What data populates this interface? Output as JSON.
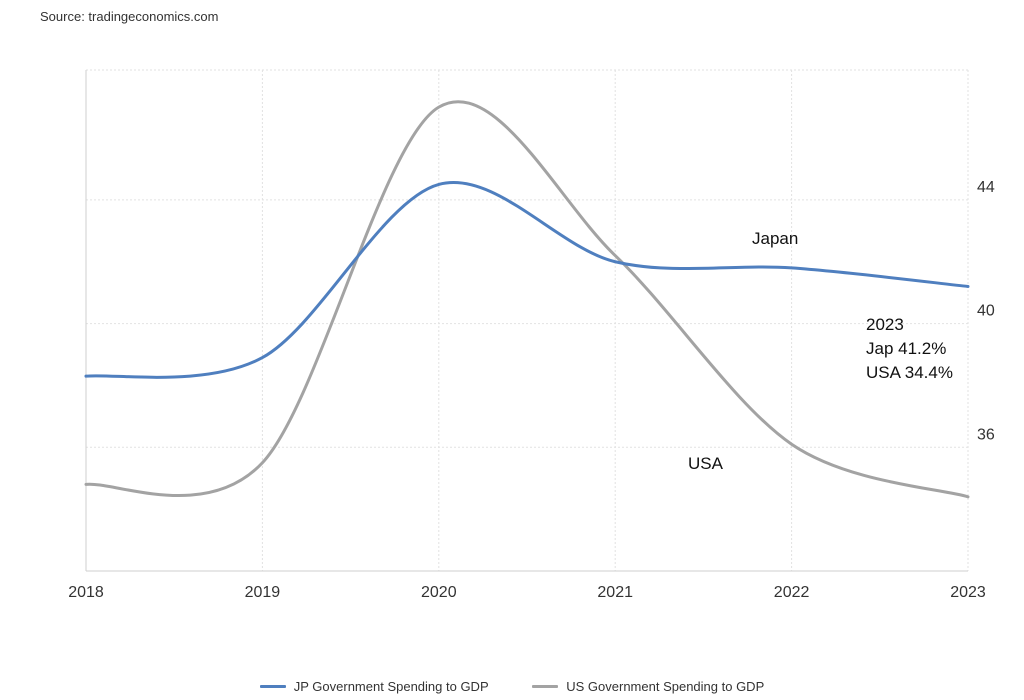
{
  "source": "Source: tradingeconomics.com",
  "chart_data": {
    "type": "line",
    "x": [
      2018,
      2019,
      2020,
      2021,
      2022,
      2023
    ],
    "x_tick_labels": [
      "2018",
      "2019",
      "2020",
      "2021",
      "2022",
      "2023"
    ],
    "y_tick_labels": [
      "36",
      "40",
      "44"
    ],
    "y_ticks": [
      36,
      40,
      44
    ],
    "xlim": [
      2018,
      2023
    ],
    "ylim": [
      32,
      48.2
    ],
    "y_axis_side": "right",
    "grid": true,
    "legend_placement": "bottom",
    "series": [
      {
        "name": "JP Government Spending to GDP",
        "color": "#4f7fbf",
        "values": [
          38.3,
          38.9,
          44.5,
          42.0,
          41.8,
          41.2
        ]
      },
      {
        "name": "US Government Spending to GDP",
        "color": "#a3a3a3",
        "values": [
          34.8,
          35.5,
          47.0,
          42.2,
          36.1,
          34.4
        ]
      }
    ],
    "annotations": {
      "japan_label": "Japan",
      "usa_label": "USA",
      "summary": [
        "2023",
        "Jap 41.2%",
        "USA 34.4%"
      ]
    }
  }
}
